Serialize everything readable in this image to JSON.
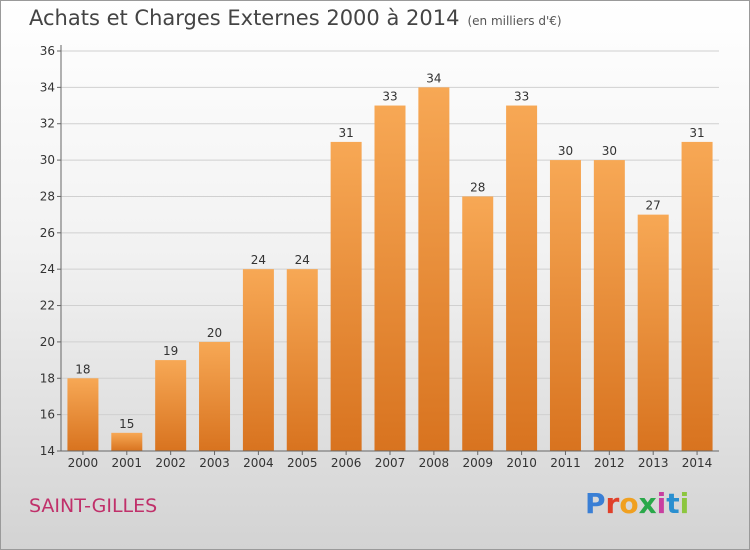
{
  "title": "Achats et Charges Externes 2000 à 2014",
  "unit": "(en milliers d'€)",
  "city": "SAINT-GILLES",
  "logo": {
    "letters": [
      "P",
      "r",
      "o",
      "x",
      "i",
      "t",
      "i"
    ],
    "colors": [
      "#3a7fd5",
      "#e0402a",
      "#f0a020",
      "#2aa84a",
      "#c83fa0",
      "#2a8fd0",
      "#8cc63f"
    ]
  },
  "colors": {
    "bar_light": "#f7a855",
    "bar_dark": "#d8731f",
    "axis": "#666666",
    "grid": "#d0d0d0"
  },
  "chart_data": {
    "type": "bar",
    "categories": [
      "2000",
      "2001",
      "2002",
      "2003",
      "2004",
      "2005",
      "2006",
      "2007",
      "2008",
      "2009",
      "2010",
      "2011",
      "2012",
      "2013",
      "2014"
    ],
    "values": [
      18,
      15,
      19,
      20,
      24,
      24,
      31,
      33,
      34,
      28,
      33,
      30,
      30,
      27,
      31
    ],
    "yticks": [
      14,
      16,
      18,
      20,
      22,
      24,
      26,
      28,
      30,
      32,
      34,
      36
    ],
    "ylim": [
      14,
      36
    ],
    "xlabel": "",
    "ylabel": "",
    "grid": true
  }
}
